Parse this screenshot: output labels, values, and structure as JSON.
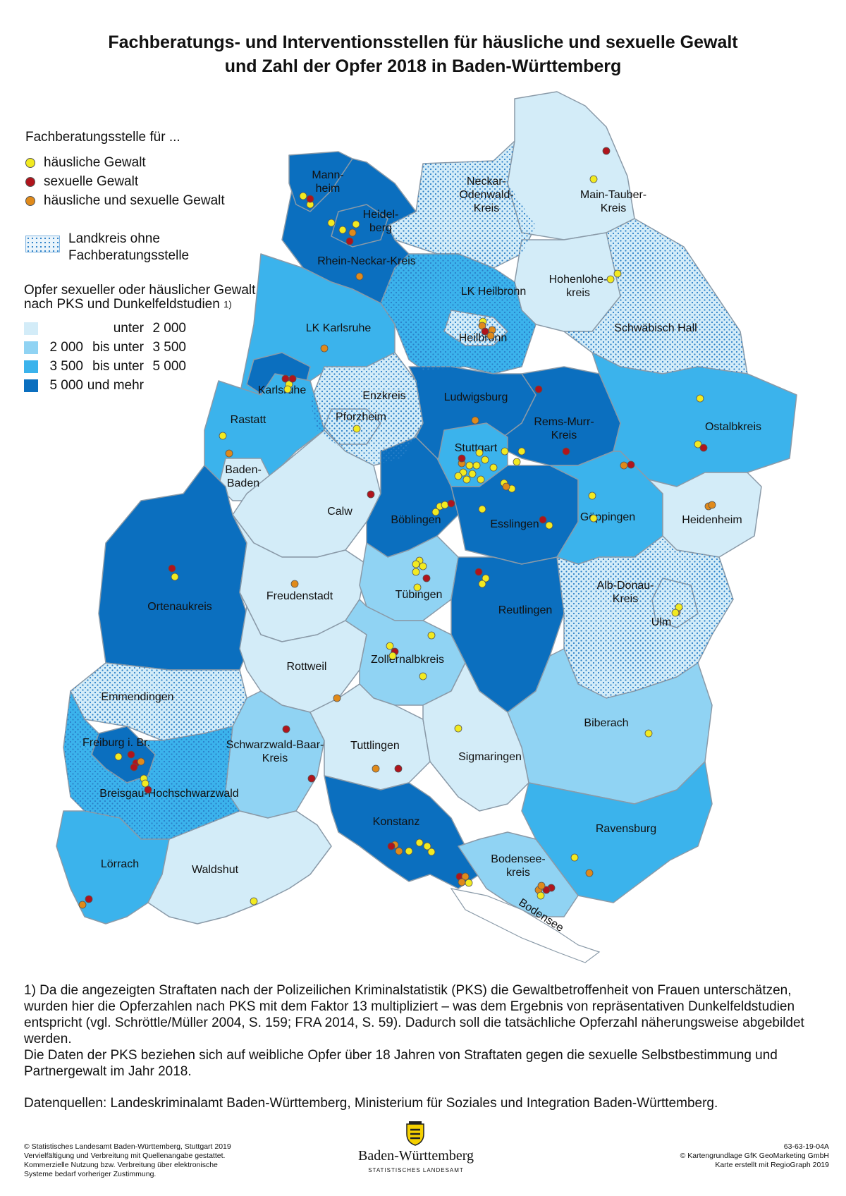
{
  "title_line1": "Fachberatungs- und Interventionsstellen für häusliche und sexuelle Gewalt",
  "title_line2": "und Zahl der Opfer 2018 in Baden-Württemberg",
  "legend": {
    "heading": "Fachberatungsstelle für ...",
    "points": [
      {
        "label": "häusliche Gewalt",
        "color": "#f2ea20"
      },
      {
        "label": "sexuelle Gewalt",
        "color": "#b0141c"
      },
      {
        "label": "häusliche und sexuelle Gewalt",
        "color": "#e08a1a"
      }
    ],
    "hatch_line1": "Landkreis ohne",
    "hatch_line2": "Fachberatungsstelle",
    "classes_heading_line1": "Opfer sexueller oder häuslicher Gewalt",
    "classes_heading_line2": "nach PKS und Dunkelfeldstudien",
    "classes_heading_sup": "1)",
    "classes": [
      {
        "from": "",
        "mid": "unter",
        "to": "2 000",
        "color": "#d3ecf8"
      },
      {
        "from": "2 000",
        "mid": "bis unter",
        "to": "3 500",
        "color": "#90d3f3"
      },
      {
        "from": "3 500",
        "mid": "bis unter",
        "to": "5 000",
        "color": "#3bb3ec"
      },
      {
        "from": "5 000",
        "mid": "und mehr",
        "to": "",
        "color": "#0b6fbf"
      }
    ]
  },
  "districts": [
    {
      "name": "Mann-heim",
      "l1": "Mann-",
      "l2": "heim"
    },
    {
      "name": "Heidel-berg",
      "l1": "Heidel-",
      "l2": "berg"
    },
    {
      "name": "Rhein-Neckar-Kreis",
      "l1": "Rhein-Neckar-Kreis",
      "l2": ""
    },
    {
      "name": "Neckar-Odenwald-Kreis",
      "l1": "Neckar-",
      "l2": "Odenwald-",
      "l3": "Kreis"
    },
    {
      "name": "Main-Tauber-Kreis",
      "l1": "Main-Tauber-",
      "l2": "Kreis"
    },
    {
      "name": "LK Heilbronn",
      "l1": "LK Heilbronn"
    },
    {
      "name": "Hohenlohe-kreis",
      "l1": "Hohenlohe-",
      "l2": "kreis"
    },
    {
      "name": "Heilbronn",
      "l1": "Heilbronn"
    },
    {
      "name": "Schwäbisch Hall",
      "l1": "Schwäbisch Hall"
    },
    {
      "name": "LK Karlsruhe",
      "l1": "LK Karlsruhe"
    },
    {
      "name": "Karlsruhe",
      "l1": "Karlsruhe"
    },
    {
      "name": "Enzkreis",
      "l1": "Enzkreis"
    },
    {
      "name": "Ludwigsburg",
      "l1": "Ludwigsburg"
    },
    {
      "name": "Rems-Murr-Kreis",
      "l1": "Rems-Murr-",
      "l2": "Kreis"
    },
    {
      "name": "Ostalbkreis",
      "l1": "Ostalbkreis"
    },
    {
      "name": "Rastatt",
      "l1": "Rastatt"
    },
    {
      "name": "Pforzheim",
      "l1": "Pforzheim"
    },
    {
      "name": "Stuttgart",
      "l1": "Stuttgart"
    },
    {
      "name": "Baden-Baden",
      "l1": "Baden-",
      "l2": "Baden"
    },
    {
      "name": "Calw",
      "l1": "Calw"
    },
    {
      "name": "Böblingen",
      "l1": "Böblingen"
    },
    {
      "name": "Esslingen",
      "l1": "Esslingen"
    },
    {
      "name": "Göppingen",
      "l1": "Göppingen"
    },
    {
      "name": "Heidenheim",
      "l1": "Heidenheim"
    },
    {
      "name": "Ortenaukreis",
      "l1": "Ortenaukreis"
    },
    {
      "name": "Freudenstadt",
      "l1": "Freudenstadt"
    },
    {
      "name": "Tübingen",
      "l1": "Tübingen"
    },
    {
      "name": "Reutlingen",
      "l1": "Reutlingen"
    },
    {
      "name": "Alb-Donau-Kreis",
      "l1": "Alb-Donau-",
      "l2": "Kreis"
    },
    {
      "name": "Ulm",
      "l1": "Ulm"
    },
    {
      "name": "Rottweil",
      "l1": "Rottweil"
    },
    {
      "name": "Zollernalbkreis",
      "l1": "Zollernalbkreis"
    },
    {
      "name": "Emmendingen",
      "l1": "Emmendingen"
    },
    {
      "name": "Biberach",
      "l1": "Biberach"
    },
    {
      "name": "Freiburg i. Br.",
      "l1": "Freiburg i. Br."
    },
    {
      "name": "Schwarzwald-Baar-Kreis",
      "l1": "Schwarzwald-Baar-",
      "l2": "Kreis"
    },
    {
      "name": "Tuttlingen",
      "l1": "Tuttlingen"
    },
    {
      "name": "Sigmaringen",
      "l1": "Sigmaringen"
    },
    {
      "name": "Breisgau-Hochschwarzwald",
      "l1": "Breisgau-Hochschwarzwald"
    },
    {
      "name": "Konstanz",
      "l1": "Konstanz"
    },
    {
      "name": "Ravensburg",
      "l1": "Ravensburg"
    },
    {
      "name": "Lörrach",
      "l1": "Lörrach"
    },
    {
      "name": "Waldshut",
      "l1": "Waldshut"
    },
    {
      "name": "Bodensee-kreis",
      "l1": "Bodensee-",
      "l2": "kreis"
    },
    {
      "name": "Bodensee",
      "l1": "Bodensee"
    }
  ],
  "footnote": {
    "para1": "1) Da die angezeigten Straftaten nach der Polizeilichen Kriminalstatistik (PKS) die Gewaltbetroffenheit von Frauen unterschätzen, wurden hier die Opferzahlen nach PKS mit dem Faktor 13 multipliziert – was dem Ergebnis von repräsentativen Dunkelfeldstudien entspricht (vgl. Schröttle/Müller 2004, S. 159; FRA 2014, S. 59). Dadurch soll die tatsächliche Opferzahl näherungsweise abgebildet werden.",
    "para2": "Die Daten der PKS beziehen sich auf weibliche Opfer über 18 Jahren von Straftaten gegen die sexuelle Selbstbestimmung und Partnergewalt im Jahr 2018.",
    "sources": "Datenquellen: Landeskriminalamt Baden-Württemberg, Ministerium für Soziales und Integration Baden-Württemberg."
  },
  "imprint": {
    "line1": "© Statistisches Landesamt Baden-Württemberg, Stuttgart 2019",
    "line2": "Vervielfältigung und Verbreitung mit Quellenangabe gestattet.",
    "line3": "Kommerzielle Nutzung bzw. Verbreitung über elektronische",
    "line4": "Systeme bedarf vorheriger Zustimmung."
  },
  "logo": {
    "name": "Baden-Württemberg",
    "sub": "STATISTISCHES LANDESAMT"
  },
  "credits": {
    "code": "63-63-19-04A",
    "line2": "© Kartengrundlage GfK GeoMarketing GmbH",
    "line3": "Karte erstellt mit RegioGraph 2019"
  },
  "colors": {
    "c1": "#d3ecf8",
    "c2": "#90d3f3",
    "c3": "#3bb3ec",
    "c4": "#0b6fbf",
    "yellow": "#f2ea20",
    "red": "#b0141c",
    "orange": "#e08a1a"
  }
}
